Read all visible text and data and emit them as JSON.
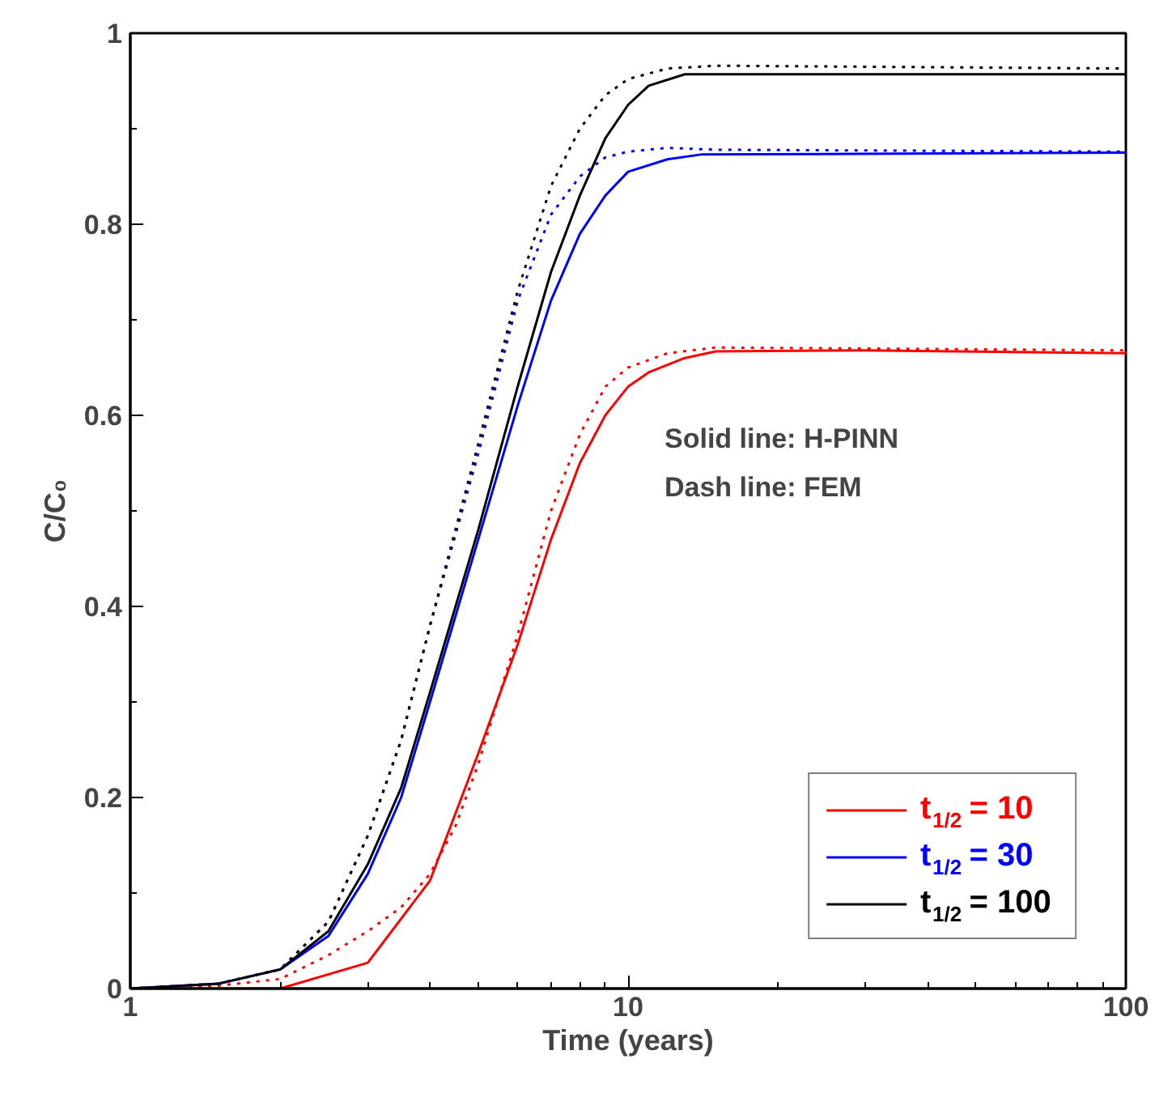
{
  "chart_data": {
    "type": "line",
    "xlabel": "Time (years)",
    "ylabel": "C/C₀",
    "log": "x",
    "xlim": [
      1,
      100
    ],
    "xticks": [
      1,
      10,
      100
    ],
    "ylim": [
      0,
      1
    ],
    "yticks": [
      0,
      {
        "value": 0.2,
        "label": "0.2"
      },
      {
        "value": 0.4,
        "label": "0.4"
      },
      {
        "value": 0.6,
        "label": "0.6"
      },
      {
        "value": 0.8,
        "label": "0.8"
      },
      1
    ],
    "grid": false,
    "legend": "bottom right",
    "annotations": [
      "Solid line: H-PINN",
      "Dash line: FEM"
    ],
    "series": [
      {
        "name": "t$_{1/2}$ = 10",
        "color": "#ff0000",
        "line_style": "solid",
        "x": [
          1,
          1.5,
          2,
          3,
          4,
          5,
          6,
          7,
          8,
          9,
          10,
          11,
          13,
          15,
          30,
          100
        ],
        "values": [
          0,
          0,
          0,
          0.027,
          0.113,
          0.246,
          0.36,
          0.47,
          0.55,
          0.6,
          0.63,
          0.645,
          0.66,
          0.667,
          0.668,
          0.665
        ]
      },
      {
        "name": "t$_{1/2}$ = 30",
        "color": "#0000ff",
        "line_style": "solid",
        "x": [
          1,
          1.5,
          2,
          2.5,
          3,
          3.5,
          4,
          5,
          6,
          7,
          8,
          9,
          10,
          12,
          14,
          100
        ],
        "values": [
          0,
          0.005,
          0.02,
          0.055,
          0.12,
          0.2,
          0.3,
          0.47,
          0.61,
          0.72,
          0.79,
          0.83,
          0.855,
          0.868,
          0.873,
          0.875
        ]
      },
      {
        "name": "t$_{1/2}$ = 100",
        "color": "#000000",
        "line_style": "solid",
        "x": [
          1,
          1.5,
          2,
          2.5,
          3,
          3.5,
          4,
          5,
          6,
          7,
          8,
          9,
          10,
          11,
          13,
          100
        ],
        "values": [
          0,
          0.005,
          0.02,
          0.06,
          0.13,
          0.21,
          0.31,
          0.48,
          0.63,
          0.75,
          0.83,
          0.89,
          0.925,
          0.945,
          0.957,
          0.957
        ]
      },
      {
        "color": "#ff0000",
        "line_style": "dotted",
        "x": [
          1,
          1.5,
          2,
          2.5,
          3,
          3.5,
          4,
          4.5,
          5,
          6,
          7,
          8,
          9,
          10,
          12,
          15,
          100
        ],
        "values": [
          0,
          0.003,
          0.01,
          0.035,
          0.06,
          0.085,
          0.12,
          0.17,
          0.235,
          0.37,
          0.5,
          0.58,
          0.63,
          0.65,
          0.665,
          0.671,
          0.668
        ]
      },
      {
        "color": "#0000ff",
        "line_style": "dotted",
        "x": [
          1,
          1.5,
          2,
          2.5,
          3,
          3.5,
          4,
          5,
          6,
          7,
          8,
          9,
          10,
          12,
          15,
          100
        ],
        "values": [
          0,
          0.005,
          0.02,
          0.07,
          0.16,
          0.26,
          0.38,
          0.56,
          0.72,
          0.81,
          0.85,
          0.87,
          0.876,
          0.88,
          0.878,
          0.876
        ]
      },
      {
        "color": "#000000",
        "line_style": "dotted",
        "x": [
          1,
          1.5,
          2,
          2.5,
          3,
          3.5,
          4,
          5,
          6,
          7,
          8,
          9,
          10,
          12,
          15,
          100
        ],
        "values": [
          0,
          0.005,
          0.02,
          0.07,
          0.16,
          0.26,
          0.38,
          0.57,
          0.73,
          0.84,
          0.9,
          0.935,
          0.952,
          0.963,
          0.966,
          0.963
        ]
      }
    ]
  }
}
